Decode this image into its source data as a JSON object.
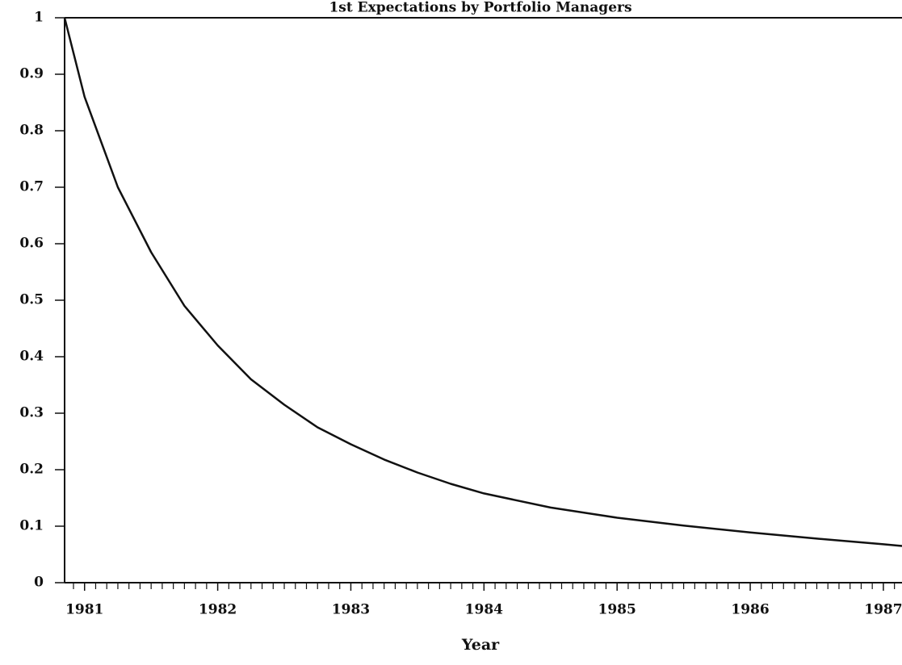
{
  "chart_data": {
    "type": "line",
    "title": "1st Expectations by Portfolio Managers",
    "x_label": "Year",
    "x": [
      1980.85,
      1981.0,
      1981.25,
      1981.5,
      1981.75,
      1982.0,
      1982.25,
      1982.5,
      1982.75,
      1983.0,
      1983.25,
      1983.5,
      1983.75,
      1984.0,
      1984.5,
      1985.0,
      1985.5,
      1986.0,
      1986.5,
      1987.0,
      1987.14
    ],
    "series": [
      {
        "color": "#111111",
        "values": [
          1.0,
          0.86,
          0.7,
          0.585,
          0.49,
          0.42,
          0.36,
          0.315,
          0.275,
          0.245,
          0.218,
          0.195,
          0.175,
          0.158,
          0.133,
          0.115,
          0.101,
          0.089,
          0.078,
          0.068,
          0.065
        ]
      }
    ],
    "xlim": [
      1980.85,
      1987.14
    ],
    "xticks": [
      1981,
      1982,
      1983,
      1984,
      1985,
      1986,
      1987
    ],
    "ylim": [
      0,
      1
    ],
    "yticks": [
      0,
      0.1,
      0.2,
      0.3,
      0.4,
      0.5,
      0.6,
      0.7,
      0.8,
      0.9,
      1
    ],
    "grid": false
  }
}
